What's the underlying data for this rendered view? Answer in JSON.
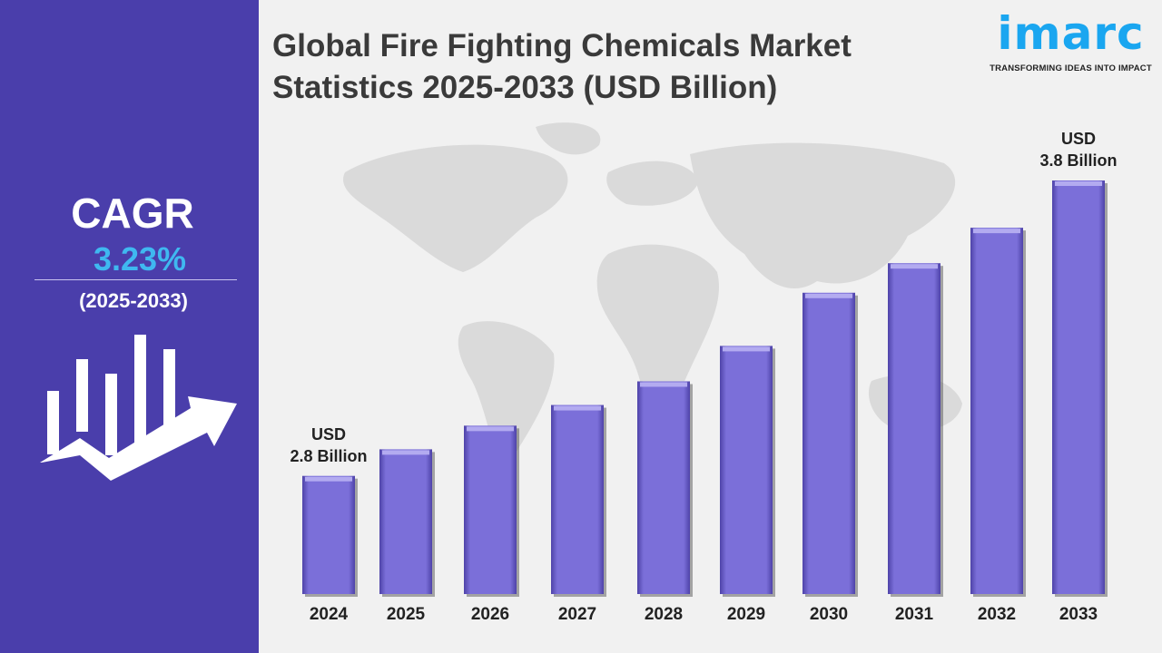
{
  "title": "Global Fire Fighting Chemicals Market Statistics 2025-2033 (USD Billion)",
  "title_lines": [
    "Global Fire Fighting Chemicals Market",
    "Statistics 2025-2033 (USD Billion)"
  ],
  "logo": {
    "text": "imarc",
    "tagline": "TRANSFORMING IDEAS INTO IMPACT"
  },
  "cagr": {
    "label": "CAGR",
    "value": "3.23%",
    "period": "(2025-2033)"
  },
  "colors": {
    "panel": "#4a3eab",
    "bar": "#7b6fd9",
    "cagr_value": "#3fb8f0",
    "logo": "#1aa6f0"
  },
  "chart_data": {
    "type": "bar",
    "title": "Global Fire Fighting Chemicals Market Statistics 2025-2033 (USD Billion)",
    "categories": [
      "2024",
      "2025",
      "2026",
      "2027",
      "2028",
      "2029",
      "2030",
      "2031",
      "2032",
      "2033"
    ],
    "values": [
      2.8,
      2.89,
      2.97,
      3.04,
      3.12,
      3.24,
      3.42,
      3.52,
      3.64,
      3.8
    ],
    "annotations": [
      {
        "category": "2024",
        "lines": [
          "USD",
          "2.8 Billion"
        ]
      },
      {
        "category": "2033",
        "lines": [
          "USD",
          "3.8 Billion"
        ]
      }
    ],
    "grid": false,
    "legend": "none"
  }
}
